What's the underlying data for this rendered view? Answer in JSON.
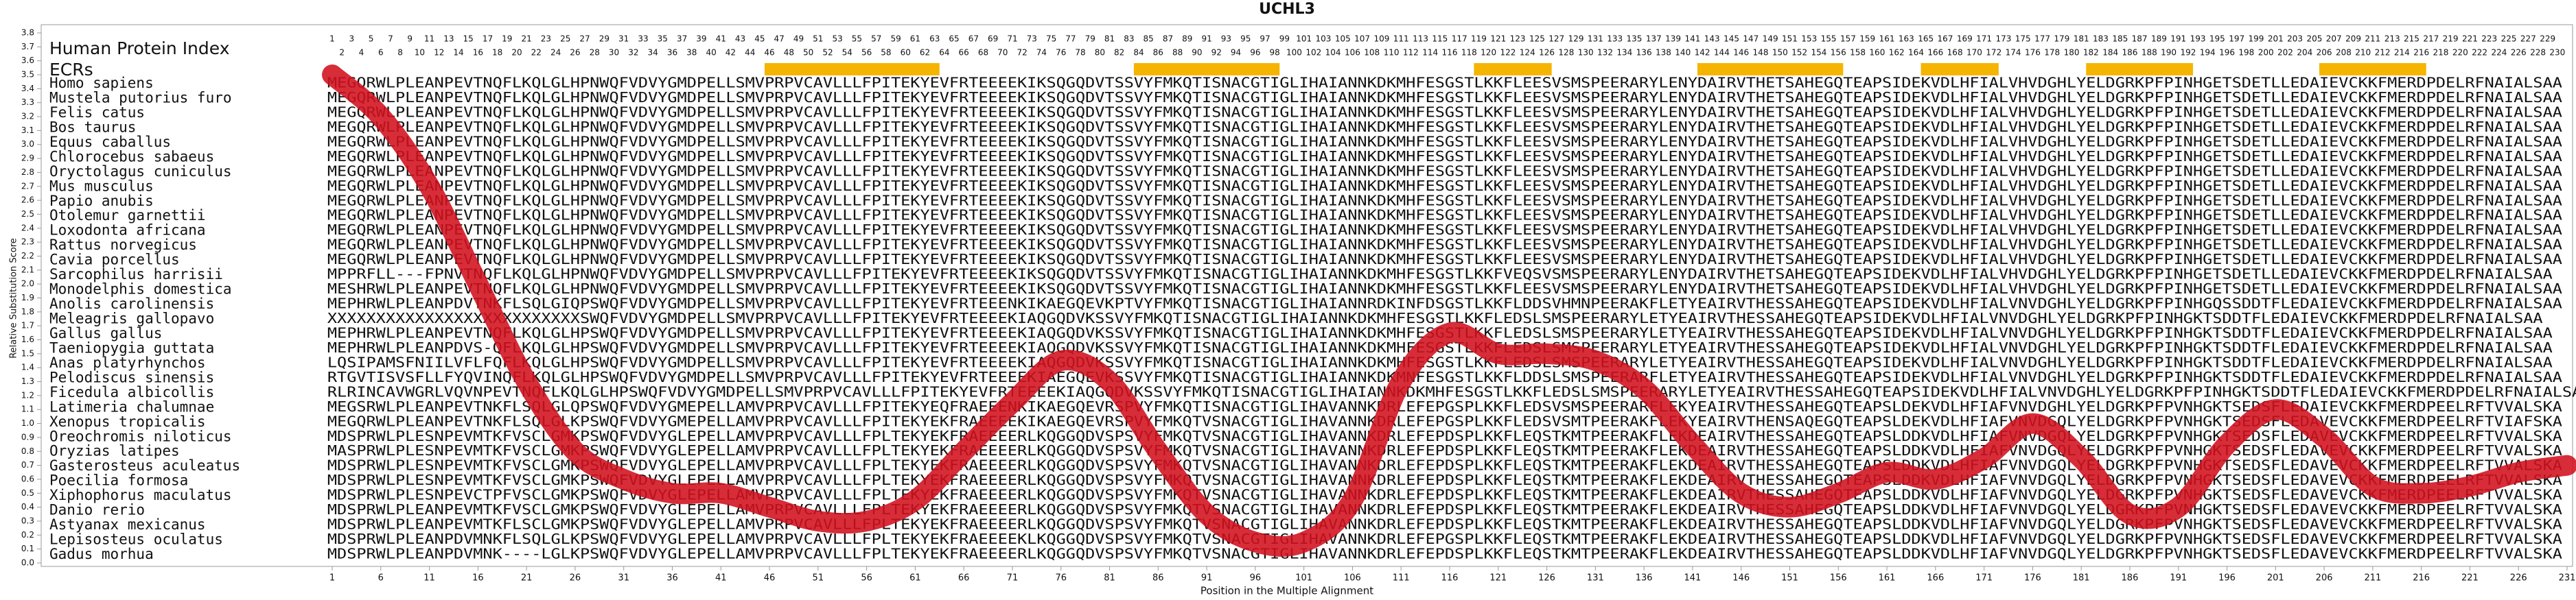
{
  "chart_data": {
    "type": "line",
    "title": "UCHL3",
    "y_label": "Relative Substitution Score",
    "x_label": "Position in the Multiple Alignment",
    "ylim": [
      0,
      3.8
    ],
    "yticks": [
      {
        "value": 0,
        "label": "0.0"
      },
      0.1,
      0.2,
      0.3,
      0.4,
      0.5,
      0.6,
      0.7,
      0.8,
      0.9,
      {
        "value": 1,
        "label": "1.0"
      },
      1.1,
      1.2,
      1.3,
      1.4,
      1.5,
      1.6,
      1.7,
      1.8,
      1.9,
      {
        "value": 2,
        "label": "2.0"
      },
      2.1,
      2.2,
      2.3,
      2.4,
      2.5,
      2.6,
      2.7,
      2.8,
      2.9,
      {
        "value": 3,
        "label": "3.0"
      },
      3.1,
      3.2,
      3.3,
      3.4,
      3.5,
      3.6,
      3.7,
      3.8
    ],
    "xlim": [
      1,
      231
    ],
    "xticks": [
      1,
      6,
      11,
      16,
      21,
      26,
      31,
      36,
      41,
      46,
      51,
      56,
      61,
      66,
      71,
      76,
      81,
      86,
      91,
      96,
      101,
      106,
      111,
      116,
      121,
      126,
      131,
      136,
      141,
      146,
      151,
      156,
      161,
      166,
      171,
      176,
      181,
      186,
      191,
      196,
      201,
      206,
      211,
      216,
      221,
      226,
      231
    ],
    "x": [
      1,
      6,
      11,
      16,
      21,
      26,
      31,
      36,
      41,
      46,
      51,
      56,
      61,
      66,
      71,
      76,
      81,
      86,
      91,
      96,
      101,
      106,
      111,
      116,
      121,
      126,
      131,
      136,
      141,
      146,
      151,
      156,
      161,
      166,
      171,
      176,
      181,
      186,
      191,
      196,
      201,
      206,
      211,
      216,
      221,
      226,
      231
    ],
    "values": [
      3.5,
      3.2,
      2.7,
      2.0,
      1.3,
      0.8,
      0.6,
      0.5,
      0.5,
      0.4,
      0.3,
      0.3,
      0.45,
      0.8,
      1.15,
      1.45,
      1.3,
      0.8,
      0.35,
      0.15,
      0.15,
      0.45,
      1.3,
      1.65,
      1.5,
      1.5,
      1.45,
      1.25,
      0.85,
      0.5,
      0.4,
      0.5,
      0.65,
      0.6,
      0.75,
      1.0,
      0.75,
      0.35,
      0.4,
      0.85,
      1.1,
      0.9,
      0.55,
      0.5,
      0.55,
      0.65,
      0.7
    ],
    "color": "#d0101e"
  },
  "alignment": {
    "header_title": "Human Protein Index",
    "ecr_label": "ECRs",
    "ecr_color": "#f5b400",
    "sequence_color": "#1b3080",
    "protein_index": [
      1,
      2,
      3,
      4,
      5,
      6,
      7,
      8,
      9,
      10,
      11,
      12,
      13,
      14,
      15,
      16,
      17,
      18,
      19,
      20,
      21,
      22,
      23,
      24,
      25,
      26,
      27,
      28,
      29,
      30,
      31,
      32,
      33,
      34,
      35,
      36,
      37,
      38,
      39,
      40,
      41,
      42,
      43,
      44,
      45,
      46,
      47,
      48,
      49,
      50,
      51,
      52,
      53,
      54,
      55,
      56,
      57,
      58,
      59,
      60,
      61,
      62,
      63,
      64,
      65,
      66,
      67,
      68,
      69,
      70,
      71,
      72,
      73,
      74,
      75,
      76,
      77,
      78,
      79,
      80,
      81,
      82,
      83,
      84,
      85,
      86,
      87,
      88,
      89,
      90,
      91,
      92,
      93,
      94,
      95,
      96,
      97,
      98,
      99,
      100,
      101,
      102,
      103,
      104,
      105,
      106,
      107,
      108,
      109,
      110,
      111,
      112,
      113,
      114,
      115,
      116,
      117,
      118,
      119,
      120,
      121,
      122,
      123,
      124,
      125,
      126,
      127,
      128,
      129,
      130,
      131,
      132,
      133,
      134,
      135,
      136,
      137,
      138,
      139,
      140,
      141,
      142,
      143,
      144,
      145,
      146,
      147,
      148,
      149,
      150,
      151,
      152,
      153,
      154,
      155,
      156,
      157,
      158,
      159,
      160,
      161,
      162,
      163,
      164,
      165,
      166,
      167,
      168,
      169,
      170,
      171,
      172,
      173,
      174,
      175,
      176,
      177,
      178,
      179,
      180,
      181,
      182,
      183,
      184,
      185,
      186,
      187,
      188,
      189,
      190,
      191,
      192,
      193,
      194,
      195,
      196,
      197,
      198,
      199,
      200,
      201,
      202,
      203,
      204,
      205,
      206,
      207,
      208,
      209,
      210,
      211,
      212,
      213,
      214,
      215,
      216,
      217,
      218,
      219,
      220,
      221,
      222,
      223,
      224,
      225,
      226,
      227,
      228,
      229,
      230
    ],
    "ecr_regions": [
      [
        46,
        63
      ],
      [
        84,
        98
      ],
      [
        119,
        126
      ],
      [
        142,
        156
      ],
      [
        165,
        172
      ],
      [
        182,
        192
      ],
      [
        206,
        216
      ]
    ],
    "rows": [
      {
        "species": "Homo sapiens",
        "sequence": "MEGQRWLPLEANPEVTNQFLKQLGLHPNWQFVDVYGMDPELLSMVPRPVCAVLLLFPITEKYEVFRTEEEEKIKSQGQDVTSSVYFMKQTISNACGTIGLIHAIANNKDKMHFESGSTLKKFLEESVSMSPEERARYLENYDAIRVTHETSAHEGQTEAPSIDEKVDLHFIALVHVDGHLYELDGRKPFPINHGETSDETLLEDAIEVCKKFMERDPDELRFNAIALSAA"
      },
      {
        "species": "Mustela putorius furo",
        "sequence": "MEGQRWLPLEANPEVTNQFLKQLGLHPNWQFVDVYGMDPELLSMVPRPVCAVLLLFPITEKYEVFRTEEEEKIKSQGQDVTSSVYFMKQTISNACGTIGLIHAIANNKDKMHFESGSTLKKFLEESVSMSPEERARYLENYDAIRVTHETSAHEGQTEAPSIDEKVDLHFIALVHVDGHLYELDGRKPFPINHGETSDETLLEDAIEVCKKFMERDPDELRFNAIALSAA"
      },
      {
        "species": "Felis catus",
        "sequence": "MEGQRWLPLEANPEVTNQFLKQLGLHPNWQFVDVYGMDPELLSMVPRPVCAVLLLFPITEKYEVFRTEEEEKIKSQGQDVTSSVYFMKQTISNACGTIGLIHAIANNKDKMHFESGSTLKKFLEESVSMSPEERARYLENYDAIRVTHETSAHEGQTEAPSIDEKVDLHFIALVHVDGHLYELDGRKPFPINHGETSDETLLEDAIEVCKKFMERDPDELRFNAIALSAA"
      },
      {
        "species": "Bos taurus",
        "sequence": "MEGQRWLPLEANPEVTNQFLKQLGLHPNWQFVDVYGMDPELLSMVPRPVCAVLLLFPITEKYEVFRTEEEEKIKSQGQDVTSSVYFMKQTISNACGTIGLIHAIANNKDKMHFESGSTLKKFLEESVSMSPEERARYLENYDAIRVTHETSAHEGQTEAPSIDEKVDLHFIALVHVDGHLYELDGRKPFPINHGETSDETLLEDAIEVCKKFMERDPDELRFNAIALSAA"
      },
      {
        "species": "Equus caballus",
        "sequence": "MEGQRWLPLEANPEVTNQFLKQLGLHPNWQFVDVYGMDPELLSMVPRPVCAVLLLFPITEKYEVFRTEEEEKIKSQGQDVTSSVYFMKQTISNACGTIGLIHAIANNKDKMHFESGSTLKKFLEESVSMSPEERARYLENYDAIRVTHETSAHEGQTEAPSIDEKVDLHFIALVHVDGHLYELDGRKPFPINHGETSDETLLEDAIEVCKKFMERDPDELRFNAIALSAA"
      },
      {
        "species": "Chlorocebus sabaeus",
        "sequence": "MEGQRWLPLEANPEVTNQFLKQLGLHPNWQFVDVYGMDPELLSMVPRPVCAVLLLFPITEKYEVFRTEEEEKIKSQGQDVTSSVYFMKQTISNACGTIGLIHAIANNKDKMHFESGSTLKKFLEESVSMSPEERARYLENYDAIRVTHETSAHEGQTEAPSIDEKVDLHFIALVHVDGHLYELDGRKPFPINHGETSDETLLEDAIEVCKKFMERDPDELRFNAIALSAA"
      },
      {
        "species": "Oryctolagus cuniculus",
        "sequence": "MEGQRWLPLEANPEVTNQFLKQLGLHPNWQFVDVYGMDPELLSMVPRPVCAVLLLFPITEKYEVFRTEEEEKIKSQGQDVTSSVYFMKQTISNACGTIGLIHAIANNKDKMHFESGSTLKKFLEESVSMSPEERARYLENYDAIRVTHETSAHEGQTEAPSIDEKVDLHFIALVHVDGHLYELDGRKPFPINHGETSDETLLEDAIEVCKKFMERDPDELRFNAIALSAA"
      },
      {
        "species": "Mus musculus",
        "sequence": "MEGQRWLPLEANPEVTNQFLKQLGLHPNWQFVDVYGMDPELLSMVPRPVCAVLLLFPITEKYEVFRTEEEEKIKSQGQDVTSSVYFMKQTISNACGTIGLIHAIANNKDKMHFESGSTLKKFLEESVSMSPEERARYLENYDAIRVTHETSAHEGQTEAPSIDEKVDLHFIALVHVDGHLYELDGRKPFPINHGETSDETLLEDAIEVCKKFMERDPDELRFNAIALSAA"
      },
      {
        "species": "Papio anubis",
        "sequence": "MEGQRWLPLEANPEVTNQFLKQLGLHPNWQFVDVYGMDPELLSMVPRPVCAVLLLFPITEKYEVFRTEEEEKIKSQGQDVTSSVYFMKQTISNACGTIGLIHAIANNKDKMHFESGSTLKKFLEESVSMSPEERARYLENYDAIRVTHETSAHEGQTEAPSIDEKVDLHFIALVHVDGHLYELDGRKPFPINHGETSDETLLEDAIEVCKKFMERDPDELRFNAIALSAA"
      },
      {
        "species": "Otolemur garnettii",
        "sequence": "MEGQRWLPLEANPEVTNQFLKQLGLHPNWQFVDVYGMDPELLSMVPRPVCAVLLLFPITEKYEVFRTEEEEKIKSQGQDVTSSVYFMKQTISNACGTIGLIHAIANNKDKMHFESGSTLKKFLEESVSMSPEERARYLENYDAIRVTHETSAHEGQTEAPSIDEKVDLHFIALVHVDGHLYELDGRKPFPINHGETSDETLLEDAIEVCKKFMERDPDELRFNAIALSAA"
      },
      {
        "species": "Loxodonta africana",
        "sequence": "MEGQRWLPLEANPEVTNQFLKQLGLHPNWQFVDVYGMDPELLSMVPRPVCAVLLLFPITEKYEVFRTEEEEKIKSQGQDVTSSVYFMKQTISNACGTIGLIHAIANNKDKMHFESGSTLKKFLEESVSMSPEERARYLENYDAIRVTHETSAHEGQTEAPSIDEKVDLHFIALVHVDGHLYELDGRKPFPINHGETSDETLLEDAIEVCKKFMERDPDELRFNAIALSAA"
      },
      {
        "species": "Rattus norvegicus",
        "sequence": "MEGQRWLPLEANPEVTNQFLKQLGLHPNWQFVDVYGMDPELLSMVPRPVCAVLLLFPITEKYEVFRTEEEEKIKSQGQDVTSSVYFMKQTISNACGTIGLIHAIANNKDKMHFESGSTLKKFLEESVSMSPEERARYLENYDAIRVTHETSAHEGQTEAPSIDEKVDLHFIALVHVDGHLYELDGRKPFPINHGETSDETLLEDAIEVCKKFMERDPDELRFNAIALSAA"
      },
      {
        "species": "Cavia porcellus",
        "sequence": "MEGQRWLPLEANPEVTNQFLKQLGLHPNWQFVDVYGMDPELLSMVPRPVCAVLLLFPITEKYEVFRTEEEEKIKSQGQDVTSSVYFMKQTISNACGTIGLIHAIANNKDKMHFESGSTLKKFLEESVSMSPEERARYLENYDAIRVTHETSAHEGQTEAPSIDEKVDLHFIALVHVDGHLYELDGRKPFPINHGETSDETLLEDAIEVCKKFMERDPDELRFNAIALSAA"
      },
      {
        "species": "Sarcophilus harrisii",
        "sequence": "MPPRFLL---FPNVTNQFLKQLGLHPNWQFVDVYGMDPELLSMVPRPVCAVLLLFPITEKYEVFRTEEEEKIKSQGQDVTSSVYFMKQTISNACGTIGLIHAIANNKDKMHFESGSTLKKFVEQSVSMSPEERARYLENYDAIRVTHETSAHEGQTEAPSIDEKVDLHFIALVHVDGHLYELDGRKPFPINHGETSDETLLEDAIEVCKKFMERDPDELRFNAIALSAA"
      },
      {
        "species": "Monodelphis domestica",
        "sequence": "MESHRWLPLEANPEVTNQFLKQLGLHPNWQFVDVYGMDPELLSMVPRPVCAVLLLFPITEKYEVFRTEEEEKIKSQGQDVTSSVYFMKQTISNACGTIGLIHAIANNKDKMHFESGSTLKKFLEESVSMSPEERARYLENYDAIRVTHETSAHEGQTEAPSIDEKVDLHFIALVHVDGHLYELDGRKPFPINHGETSDETLLEDAIEVCKKFMERDPDELRFNAIALSAA"
      },
      {
        "species": "Anolis carolinensis",
        "sequence": "MEPHRWLPLEANPDVTNKFLSQLGIQPSWQFVDVYGMDPELLSMVPRPVCAVLLLFPITEKYEVFRTEEENKIKAEGQEVKPTVYFMKQTISNACGTIGLIHAIANNRDKINFDSGSTLKKFLDDSVHMNPEERAKFLETYEAIRVTHESSAHEGQTEAPSIDEKVDLHFIALVNVDGHLYELDGRKPFPINHGQSSDDTFLEDAIEVCKKFMERDPDELRFNAIALSAA"
      },
      {
        "species": "Meleagris gallopavo",
        "sequence": "XXXXXXXXXXXXXXXXXXXXXXXXXXSWQFVDVYGMDPELLSMVPRPVCAVLLLFPITEKYEVFRTEEEEKIAQGQDVKSSVYFMKQTISNACGTIGLIHAIANNKDKMHFESGSTLKKFLEDSLSMSPEERARYLETYEAIRVTHESSAHEGQTEAPSIDEKVDLHFIALVNVDGHLYELDGRKPFPINHGKTSDDTFLEDAIEVCKKFMERDPDELRFNAIALSAA"
      },
      {
        "species": "Gallus gallus",
        "sequence": "MEPHRWLPLEANPEVTNQFLKQLGLHPSWQFVDVYGMDPELLSMVPRPVCAVLLLFPITEKYEVFRTEEEEKIAQGQDVKSSVYFMKQTISNACGTIGLIHAIANNKDKMHFESGSTLKKFLEDSLSMSPEERARYLETYEAIRVTHESSAHEGQTEAPSIDEKVDLHFIALVNVDGHLYELDGRKPFPINHGKTSDDTFLEDAIEVCKKFMERDPDELRFNAIALSAA"
      },
      {
        "species": "Taeniopygia guttata",
        "sequence": "MEPHRWLPLEANPDVS-QFLKQLGLHPSWQFVDVYGMDPELLSMVPRPVCAVLLLFPITEKYEVFRTEEEEKIAQGQDVKSSVYFMKQTISNACGTIGLIHAIANNKDKMHFESGSTLKKFLEDSLSMSPEERARYLETYEAIRVTHESSAHEGQTEAPSIDEKVDLHFIALVNVDGHLYELDGRKPFPINHGKTSDDTFLEDAIEVCKKFMERDPDELRFNAIALSAA"
      },
      {
        "species": "Anas platyrhynchos",
        "sequence": "LQSIPAMSFNIILVFLFQFLKQLGLHPSWQFVDVYGMDPELLSMVPRPVCAVLLLFPITEKYEVFRTEEEEKIAQGQDVKSSVYFMKQTISNACGTIGLIHAIANNKDKMHFESGSTLKKFLEDSLSMSPEERARYLETYEAIRVTHESSAHEGQTEAPSIDEKVDLHFIALVNVDGHLYELDGRKPFPINHGKTSDDTFLEDAIEVCKKFMERDPDELRFNAIALSAA"
      },
      {
        "species": "Pelodiscus sinensis",
        "sequence": "RTGVTISVSFLLFYQVINQFLKQLGLHPSWQFVDVYGMDPELLSMVPRPVCAVLLLFPITEKYEVFRTEEEEKIAEGQEVKSSVYFMKQTISNACGTIGLIHAIANNKDKMNFESGSTLKKFLDDSLSMSPEERARFLETYEAIRVTHESSAHEGQTEAPSIDEKVDLHFIALVNVDGHLYELDGRKPFPINHGKTSDDTFLEDAIEVCKKFMERDPDELRFNAIALSAA"
      },
      {
        "species": "Ficedula albicollis",
        "sequence": "RLRINCAVWGRLVQVNPEVTNQFLKQLGLHPSWQFVDVYGMDPELLSMVPRPVCAVLLLFPITEKYEVFRTEEEEKIAQGQDVKSSVYFMKQTISNACGTIGLIHAIANNKDKMHFESGSTLKKFLEDSLSMSPEERARYLETYEAIRVTHESSAHEGQTEAPSIDEKVDLHFIALVNVDGHLYELDGRKPFPINHGKTSDDTFLEDAIEVCKKFMERDPDELRFNAIALSAA"
      },
      {
        "species": "Latimeria chalumnae",
        "sequence": "MEGSRWLPLEANPEVTNKFLSQLGLQPSWQFVDVYGMEPELLAMVPRPVCAVLLLFPITEKYEQFRAEEENKIKAEGQEVRSPVYFMKQTISNACGTIGLIHAVANNKDRLEFEPGSPLKKFLEDSVSMSPEERARFLEKYEAIRVTHESSAHEGQTEAPSLDEKVDLHFIAFVNVDGHLYELDGRKPFPVNHGKTSEDSFLEDAIEVCKKFMERDPEELRFTVVALSKA"
      },
      {
        "species": "Xenopus tropicalis",
        "sequence": "MEGQRWLPLEANPEVTNKFLSQLGLKPSWQFVDVYGMEPELLAMVPRPVCAVLLLFPITEKYEKFRAEEEEKIKAEGQEVRSPVYFMKQTVSNACGTIGLIHAVANNKDRLEFEPGSPLKKFLEDSVSMTPEERAKFLEKYEAIRVTHENSAQEGQTEAPSLDEKVDLHFIAFVNVDGQLYELDGRKPFPVNHGKTSEDSFLEDAVEVCKKFMERDPEELRFTVIAFSKA"
      },
      {
        "species": "Oreochromis niloticus",
        "sequence": "MDSPRWLPLESNPEVMTKFVSCLGMKPSWQFVDVYGLEPELLAMVPRPVCAVLLLFPLTEKYEKFRAEEEERLKQGGQDVSPSVYFMKQTVSNACGTIGLIHAVANNKDRLEFEPDSPLKKFLEQSTKMTPEERAKFLEKDEAIRVTHESSAHEGQTEAPSLDDKVDLHFIAFVNVDGQLYELDGRKPFPVNHGKTSEDSFLEDAVEVCKKFMERDPEELRFTVVALSKA"
      },
      {
        "species": "Oryzias latipes",
        "sequence": "MASPRWLPLESNPEVMTKFVSCLGMKPSWQFVDVYGLEPELLAMVPRPVCAVLLLFPLTEKYEKFRAEEEERLKQGGQDVSPSVYFMKQTVSNACGTIGLIHAVANNKDRLEFEPDSPLKKFLEQSTKMTPEERAKFLEKDEAIRVTHESSAHEGQTEAPSLDDKVDLHFIAFVNVDGQLYELDGRKPFPVNHGKTSEDSFLEDAVEVCKKFMERDPEELRFTVVALSKA"
      },
      {
        "species": "Gasterosteus aculeatus",
        "sequence": "MDSPRWLPLESNPEVMTKFVSCLGMKPSWQFVDVYGLEPELLAMVPRPVCAVLLLFPLTEKYEKFRAEEEERLKQGGQDVSPSVYFMKQTVSNACGTIGLIHAVANNKDRLEFEPDSPLKKFLEQSTKMTPEERAKFLEKDEAIRVTHESSAHEGQTEAPSLDDKVDLHFIAFVNVDGQLYELDGRKPFPVNHGKTSEDSFLEDAVEVCKKFMERDPEELRFTVVALSKA"
      },
      {
        "species": "Poecilia formosa",
        "sequence": "MDSPRWLPLESNPEVMTKFVSCLGMKPSWQFVDVYGLEPELLAMVPRPVCAVLLLFPLTEKYEKFRAEEEERLKQGGQDVSPSVYFMKQTVSNACGTIGLIHAVANNKDRLEFEPDSPLKKFLEQSTKMTPEERAKFLEKDEAIRVTHESSAHEGQTEAPSLDDKVDLHFIAFVNVDGQLYELDGRKPFPVNHGKTSEDSFLEDAVEVCKKFMERDPEELRFTVVALSKA"
      },
      {
        "species": "Xiphophorus maculatus",
        "sequence": "MDSPRWLPLESNPEVCTPFVSCLGMKPSWQFVDVYGLEPELLAMVPRPVCAVLLLFPLTEKYEKFRAEEEERLKQGGQDVSPSVYFMKQTVSNACGTIGLIHAVANNKDRLEFEPDSPLKKFLEQSTKMTPEERAKFLEKDEAIRVTHESSAHEGQTEAPSLDDKVDLHFIAFVNVDGQLYELDGRKPFPVNHGKTSEDSFLEDAVEVCKKFMERDPEELRFTVVALSKA"
      },
      {
        "species": "Danio rerio",
        "sequence": "MDSPRWLPLEANPEVMTKFVSCLGMKPSWQFVDVYGLEPELLAMVPRPVCAVLLLFPLTEKYEKFRAEEEERLKQGGQDVSPSVYFMKQTVSNACGTIGLIHAVANNKDRLEFEPDSPLKKFLEQSTKMTPEERAKFLEKDEAIRVTHESSAHEGQTEAPSLDDKVDLHFIAFVNVDGQLYELDGRKPFPVNHGKTSEDSFLEDAVEVCKKFMERDPEELRFTVVALSKA"
      },
      {
        "species": "Astyanax mexicanus",
        "sequence": "MDSPRWLPLEANPEVMTKFLSCLGMKPSWQFVDVYGLEPELLAMVPRPVCAVLLLFPLTEKYEKFRAEEEERLKQGGQDVSPSVYFMKQTVSNACGTIGLIHAVANNKDRLEFEPDSPLKKFLEQSTKMTPEERAKFLEKDEAIRVTHESSAHEGQTEAPSLDDKVDLHFIAFVNVDGQLYELDGRKPFPVNHGKTSEDSFLEDAVEVCKKFMERDPEELRFTVVALSKA"
      },
      {
        "species": "Lepisosteus oculatus",
        "sequence": "MDSPRWLPLEANPDVMNKFLSQLGLKPSWQFVDVYGLEPELLAMVPRPVCAVLLLFPLTEKYEKFRAEEEEKLKQGGQDVSPSVYFMKQTVSNACGTIGLIHAVANNKDRLEFEPGSPLKKFLEQSTKMTPEERAKFLEKDEAIRVTHESSAHEGQTEAPSLDDKVDLHFIAFVNVDGQLYELDGRKPFPVNHGKTSEDSFLEDAVEVCKKFMERDPEELRFTVVALSKA"
      },
      {
        "species": "Gadus morhua",
        "sequence": "MDSPRWLPLEANPDVMNK----LGLKPSWQFVDVYGLEPELLAMVPRPVCAVLLLFPLTEKYEKFRAEEEERLKQGGQDVSPSVYFMKQTVSNACGTIGLIHAVANNKDRLEFEPDSPLKKFLEQSTKMTPEERAKFLEKDEAIRVTHESSAHEGQTEAPSLDDKVDLHFIAFVNVDGQLYELDGRKPFPVNHGKTSEDSFLEDAVEVCKKFMERDPEELRFTVVALSKA"
      }
    ]
  }
}
